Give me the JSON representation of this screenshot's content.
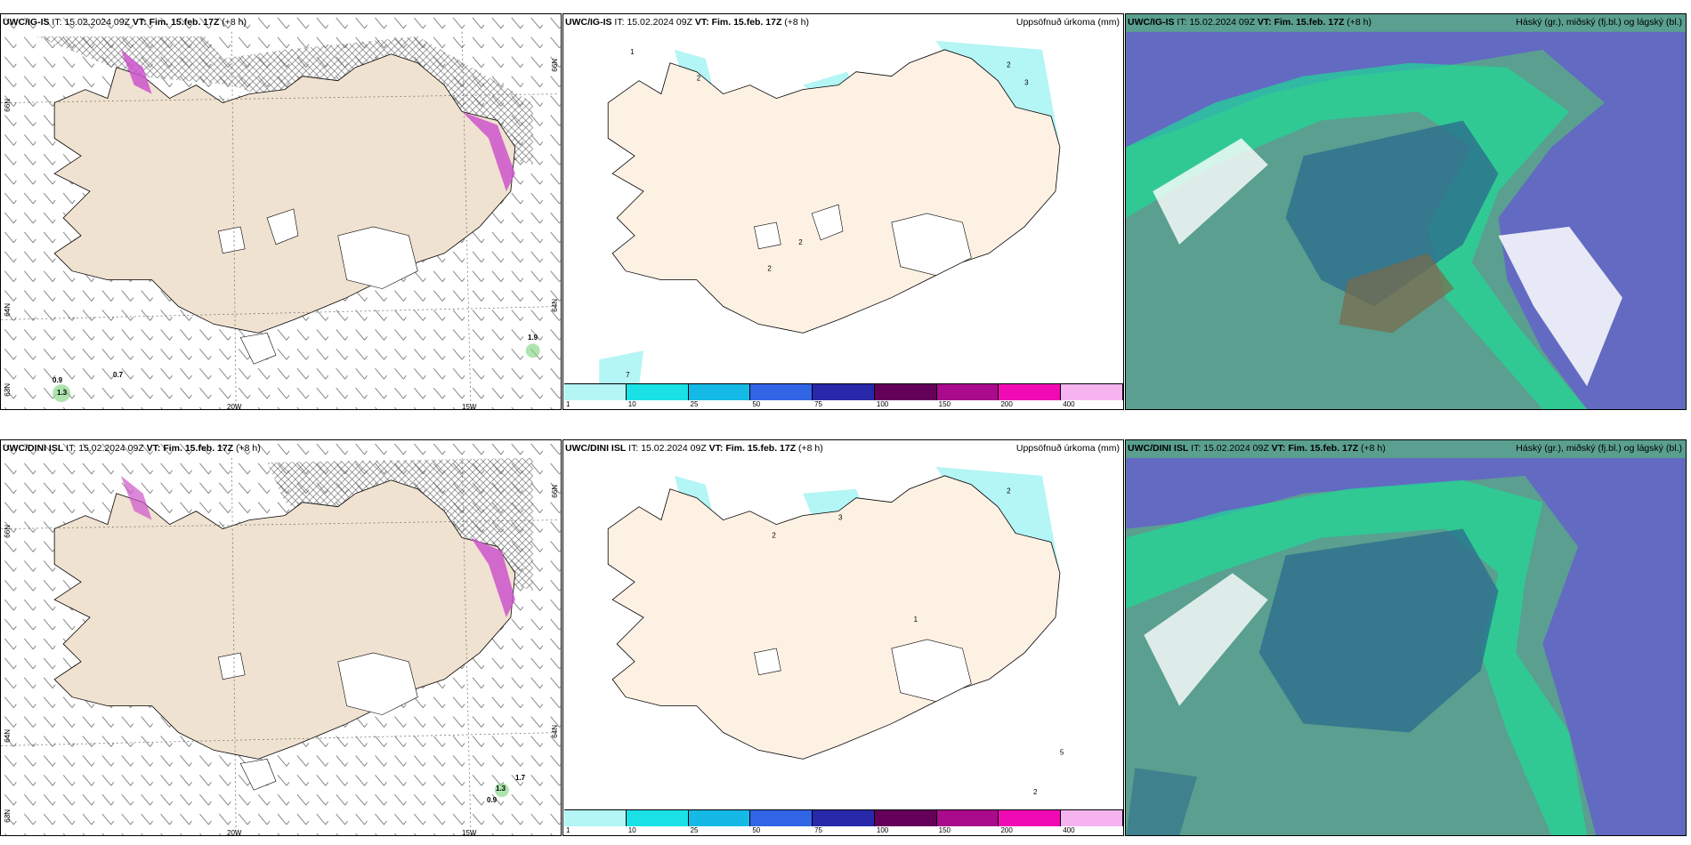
{
  "panels": {
    "top_left": {
      "model": "UWC/IG-IS",
      "it_label": "IT:",
      "it_value": "15.02.2024 09Z",
      "vt_label": "VT:",
      "vt_value": "Fim. 15.feb. 17Z",
      "offset": "(+8 h)",
      "lat_labels": [
        "66N",
        "64N",
        "63N"
      ],
      "lat_right": [
        "66N",
        "64N"
      ],
      "lon_labels": [
        "20W",
        "15W"
      ],
      "values": [
        "0.9",
        "1.3",
        "0.7",
        "1.9"
      ]
    },
    "top_mid": {
      "model": "UWC/IG-IS",
      "it_label": "IT:",
      "it_value": "15.02.2024 09Z",
      "vt_label": "VT:",
      "vt_value": "Fim. 15.feb. 17Z",
      "offset": "(+8 h)",
      "title_right": "Uppsöfnuð úrkoma (mm)"
    },
    "top_right": {
      "model": "UWC/IG-IS",
      "it_label": "IT:",
      "it_value": "15.02.2024 09Z",
      "vt_label": "VT:",
      "vt_value": "Fim. 15.feb. 17Z",
      "offset": "(+8 h)",
      "title_right": "Háský (gr.), miðský (fj.bl.) og lágský (bl.)"
    },
    "bot_left": {
      "model": "UWC/DINI ISL",
      "it_label": "IT:",
      "it_value": "15.02.2024 09Z",
      "vt_label": "VT:",
      "vt_value": "Fim. 15.feb. 17Z",
      "offset": "(+8 h)",
      "lat_labels": [
        "66N",
        "64N",
        "63N"
      ],
      "lat_right": [
        "66N",
        "64N"
      ],
      "lon_labels": [
        "20W",
        "15W"
      ],
      "values": [
        "1.3",
        "0.9",
        "1.7"
      ]
    },
    "bot_mid": {
      "model": "UWC/DINI ISL",
      "it_label": "IT:",
      "it_value": "15.02.2024 09Z",
      "vt_label": "VT:",
      "vt_value": "Fim. 15.feb. 17Z",
      "offset": "(+8 h)",
      "title_right": "Uppsöfnuð úrkoma (mm)"
    },
    "bot_right": {
      "model": "UWC/DINI ISL",
      "it_label": "IT:",
      "it_value": "15.02.2024 09Z",
      "vt_label": "VT:",
      "vt_value": "Fim. 15.feb. 17Z",
      "offset": "(+8 h)",
      "title_right": "Háský (gr.), miðský (fj.bl.) og lágský (bl.)"
    }
  },
  "precip_scale": {
    "ticks": [
      "1",
      "10",
      "25",
      "50",
      "75",
      "100",
      "150",
      "200",
      "400"
    ],
    "colors": [
      "#b4f5f5",
      "#19e1e6",
      "#14b9e6",
      "#3264e6",
      "#2828aa",
      "#64005a",
      "#aa0a8c",
      "#f00ab4",
      "#f5b4f0"
    ]
  },
  "colors": {
    "land": "#f0e2d0",
    "land_precip": "#fdf1e4",
    "cloud_high": "#2d6e8c",
    "cloud_mid": "#1edc96",
    "cloud_low": "#6464c8",
    "snow": "#cc55cc"
  }
}
